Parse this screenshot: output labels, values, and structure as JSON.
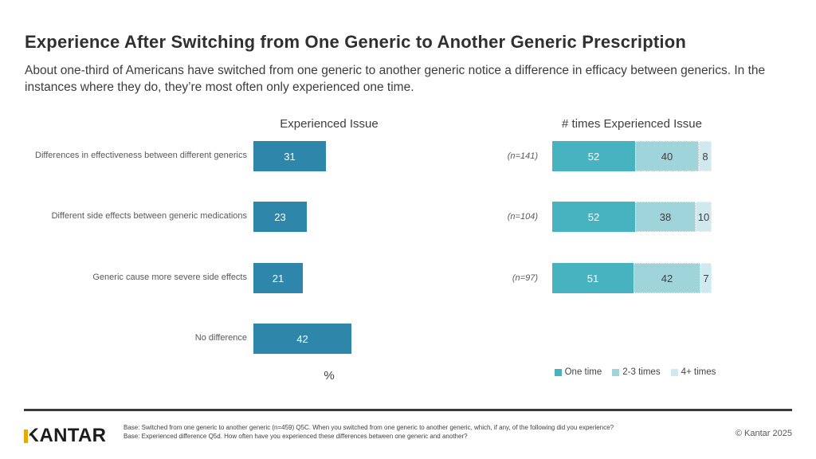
{
  "header": {
    "title": "Experience After Switching from One Generic to Another Generic Prescription",
    "subtitle": "About one-third of Americans have switched from one generic to another generic notice a difference in efficacy between generics.  In the instances where they do, they’re most often only experienced one time."
  },
  "chart_data": [
    {
      "type": "bar",
      "orientation": "horizontal",
      "title": "Experienced Issue",
      "categories": [
        "Differences in effectiveness between different generics",
        "Different side effects between generic medications",
        "Generic cause more severe side effects",
        "No difference"
      ],
      "values": [
        31,
        23,
        21,
        42
      ],
      "xlabel": "%",
      "xlim": [
        0,
        100
      ],
      "grid": false,
      "bar_color": "#2e86ab",
      "value_label_color": "#ffffff"
    },
    {
      "type": "bar",
      "orientation": "horizontal",
      "stacked": true,
      "title": "# times Experienced Issue",
      "categories": [
        "(n=141)",
        "(n=104)",
        "(n=97)"
      ],
      "series": [
        {
          "name": "One time",
          "color": "#47b2c0",
          "text_color": "#ffffff",
          "values": [
            52,
            52,
            51
          ]
        },
        {
          "name": "2-3 times",
          "color": "#9fd4db",
          "text_color": "#3f3f3f",
          "values": [
            40,
            38,
            42
          ]
        },
        {
          "name": "4+ times",
          "color": "#d0e9ef",
          "text_color": "#3f3f3f",
          "values": [
            8,
            10,
            7
          ]
        }
      ],
      "xlim": [
        0,
        100
      ],
      "grid": false,
      "legend_position": "bottom"
    }
  ],
  "footer": {
    "logo": {
      "first_letter": "K",
      "rest": "ANTAR",
      "accent_color": "#eda800"
    },
    "base_lines": [
      "Base: Switched from one generic to another generic (n=459) Q5C. When you switched from one generic to another generic, which, if any, of the following did you experience?",
      "Base: Experienced difference Q5d. How often have you experienced these differences between one generic and another?"
    ],
    "copyright": "© Kantar 2025"
  }
}
